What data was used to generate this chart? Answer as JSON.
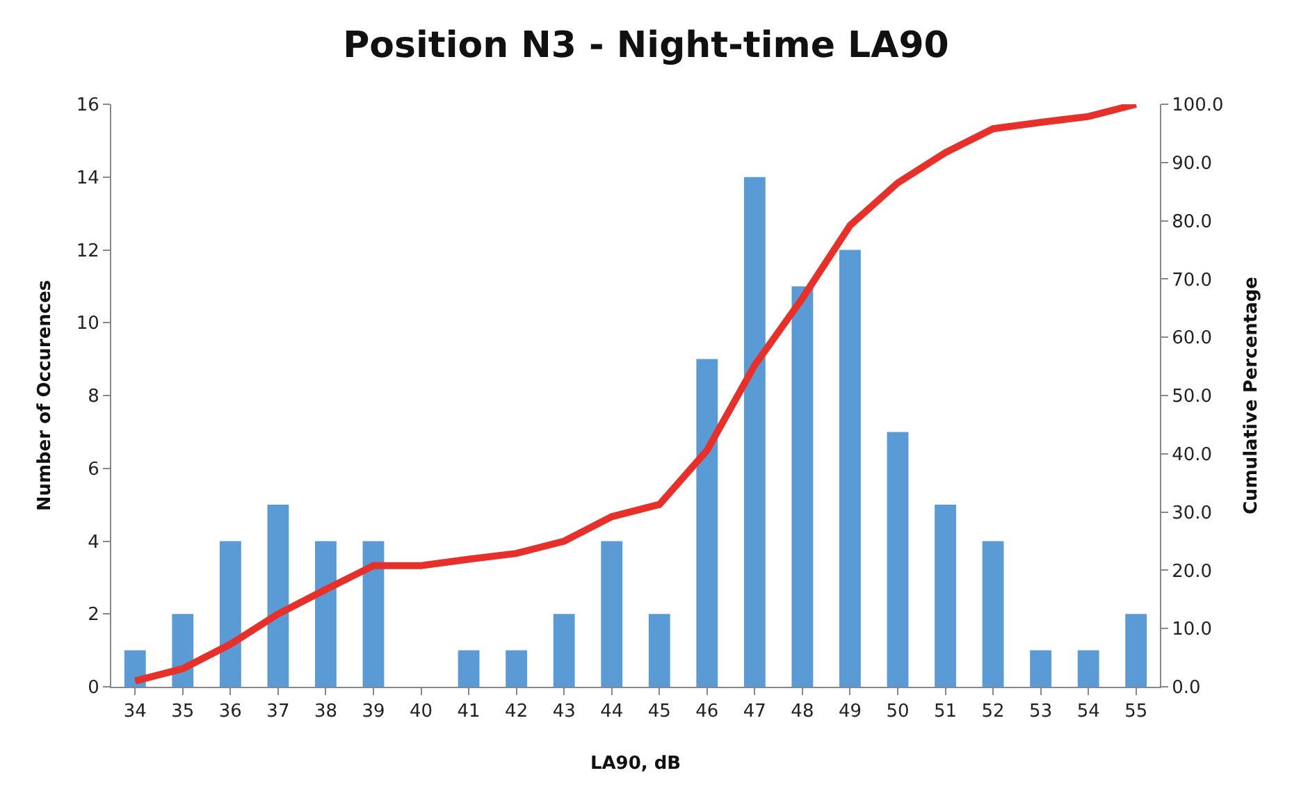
{
  "chart_data": {
    "type": "bar",
    "title": "Position N3 - Night-time LA90",
    "xlabel": "LA90, dB",
    "ylabel": "Number of Occurences",
    "y2label": "Cumulative Percentage",
    "categories": [
      "34",
      "35",
      "36",
      "37",
      "38",
      "39",
      "40",
      "41",
      "42",
      "43",
      "44",
      "45",
      "46",
      "47",
      "48",
      "49",
      "50",
      "51",
      "52",
      "53",
      "54",
      "55"
    ],
    "series": [
      {
        "color": "#5b9bd5",
        "values": [
          1,
          2,
          4,
          5,
          4,
          4,
          0,
          1,
          1,
          2,
          4,
          2,
          9,
          14,
          11,
          12,
          7,
          5,
          4,
          1,
          1,
          2
        ]
      },
      {
        "type": "line",
        "axis": "y2",
        "color": "#e8302a",
        "values": [
          1.0,
          3.1,
          7.3,
          12.5,
          16.7,
          20.8,
          20.8,
          21.9,
          22.9,
          25.0,
          29.2,
          31.3,
          40.6,
          55.2,
          66.7,
          79.2,
          86.5,
          91.7,
          95.8,
          96.9,
          97.9,
          100.0
        ]
      }
    ],
    "ylim": [
      0,
      16
    ],
    "yticks": [
      0,
      2,
      4,
      6,
      8,
      10,
      12,
      14,
      16
    ],
    "y2lim": [
      0,
      100
    ],
    "y2ticks": [
      {
        "value": 0,
        "label": "0.0"
      },
      {
        "value": 10,
        "label": "10.0"
      },
      {
        "value": 20,
        "label": "20.0"
      },
      {
        "value": 30,
        "label": "30.0"
      },
      {
        "value": 40,
        "label": "40.0"
      },
      {
        "value": 50,
        "label": "50.0"
      },
      {
        "value": 60,
        "label": "60.0"
      },
      {
        "value": 70,
        "label": "70.0"
      },
      {
        "value": 80,
        "label": "80.0"
      },
      {
        "value": 90,
        "label": "90.0"
      },
      {
        "value": 100,
        "label": "100.0"
      }
    ],
    "grid": false,
    "marker": "none",
    "line_style": "solid"
  }
}
